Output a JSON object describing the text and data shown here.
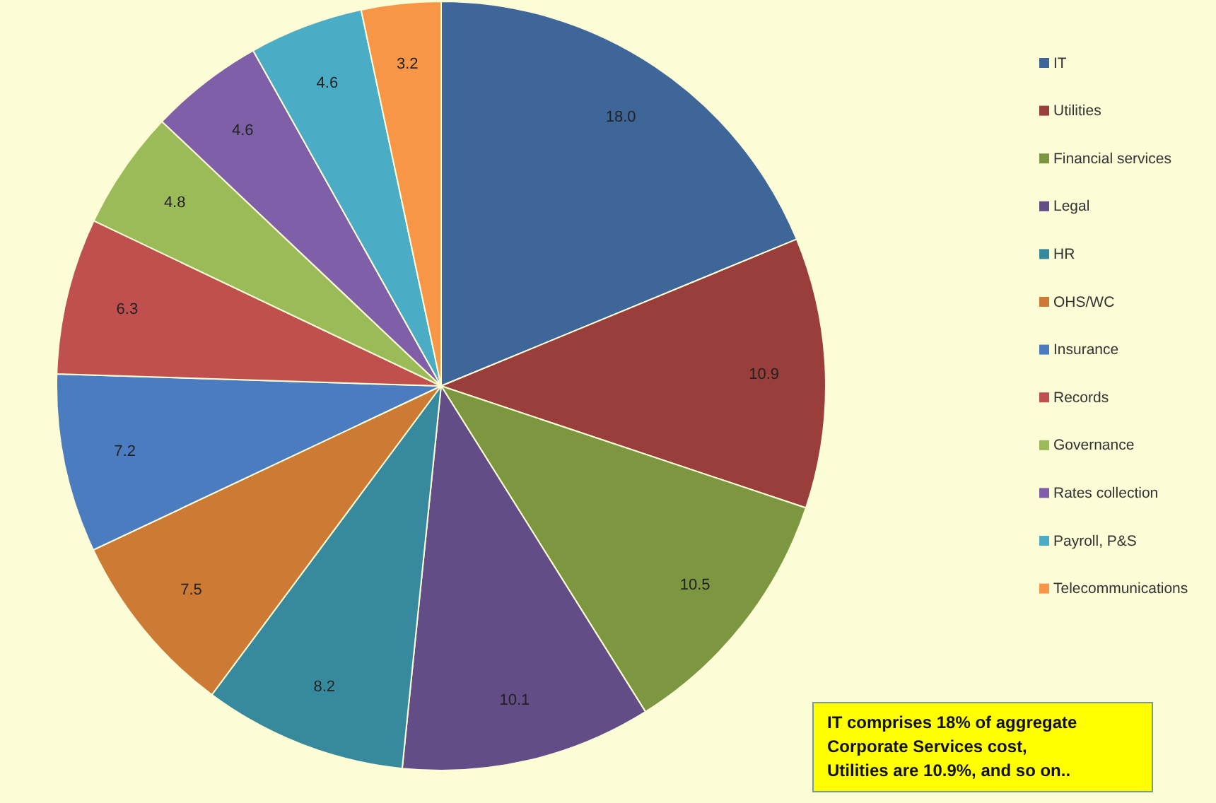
{
  "chart_data": {
    "type": "pie",
    "categories": [
      "IT",
      "Utilities",
      "Financial services",
      "Legal",
      "HR",
      "OHS/WC",
      "Insurance",
      "Records",
      "Governance",
      "Rates collection",
      "Payroll, P&S",
      "Telecommunications"
    ],
    "values": [
      18.0,
      10.9,
      10.5,
      10.1,
      8.2,
      7.5,
      7.2,
      6.3,
      4.8,
      4.6,
      4.6,
      3.2
    ],
    "colors": [
      "#3e6699",
      "#9a3e3c",
      "#7c973f",
      "#634d86",
      "#378a9e",
      "#cc7a34",
      "#4a7cbf",
      "#c0504d",
      "#9bbb59",
      "#7f5fa8",
      "#4bacc6",
      "#f79646"
    ],
    "value_labels": [
      "18.0",
      "10.9",
      "10.5",
      "10.1",
      "8.2",
      "7.5",
      "7.2",
      "6.3",
      "4.8",
      "4.6",
      "4.6",
      "3.2"
    ],
    "legend": "right",
    "annotations": [
      "IT comprises 18% of aggregate Corporate Services cost, Utilities are 10.9%, and so on.."
    ]
  }
}
